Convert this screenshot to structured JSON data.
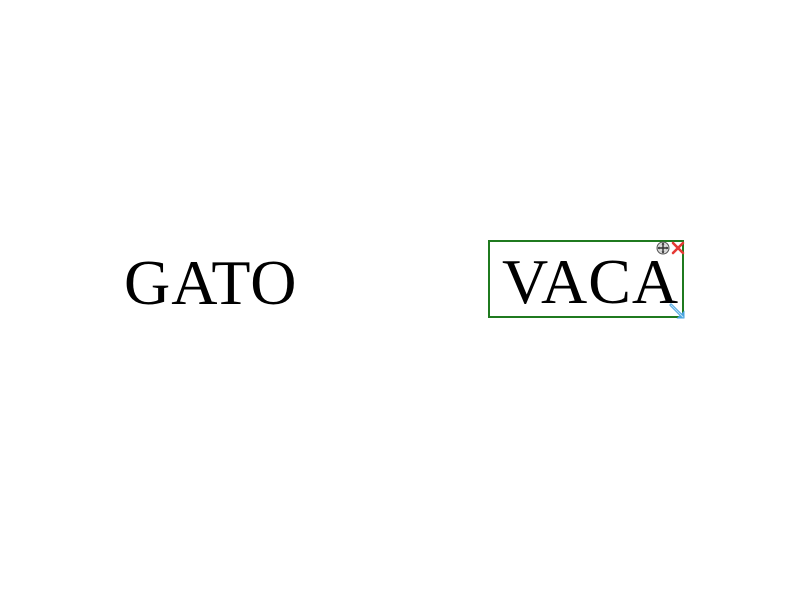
{
  "canvas": {
    "words": [
      {
        "text": "GATO",
        "selected": false
      },
      {
        "text": "VACA",
        "selected": true
      }
    ]
  },
  "selection": {
    "border_color": "#1f7a1f",
    "handles": {
      "move": "move-icon",
      "delete": "close-icon",
      "resize": "resize-arrow-icon"
    },
    "delete_color": "#e53935",
    "resize_color": "#4aa3df"
  }
}
